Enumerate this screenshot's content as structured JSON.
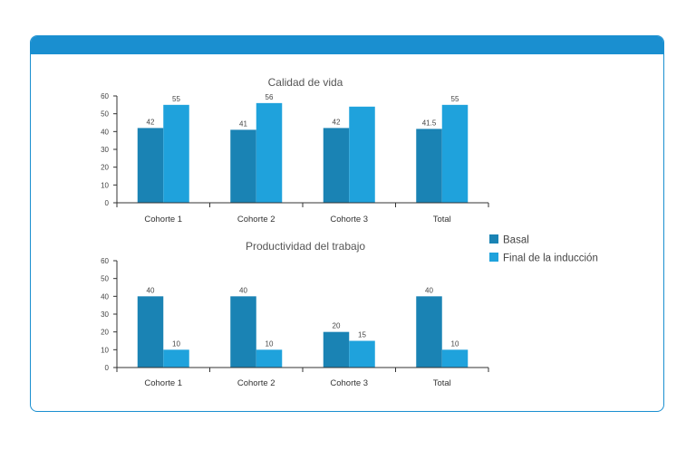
{
  "chart_data": [
    {
      "type": "bar",
      "title": "Calidad de vida",
      "categories": [
        "Cohorte 1",
        "Cohorte 2",
        "Cohorte 3",
        "Total"
      ],
      "series": [
        {
          "name": "Basal",
          "values": [
            42,
            41,
            42,
            41.5
          ],
          "labels": [
            "42",
            "41",
            "42",
            "41.5"
          ]
        },
        {
          "name": "Final de la inducción",
          "values": [
            55,
            56,
            54,
            55
          ],
          "labels": [
            "55",
            "56",
            "",
            "55"
          ]
        }
      ],
      "ylim": [
        0,
        60
      ],
      "yticks": [
        0,
        10,
        20,
        30,
        40,
        50,
        60
      ],
      "grid": false
    },
    {
      "type": "bar",
      "title": "Productividad del trabajo",
      "categories": [
        "Cohorte 1",
        "Cohorte 2",
        "Cohorte 3",
        "Total"
      ],
      "series": [
        {
          "name": "Basal",
          "values": [
            40,
            40,
            20,
            40
          ],
          "labels": [
            "40",
            "40",
            "20",
            "40"
          ]
        },
        {
          "name": "Final de la inducción",
          "values": [
            10,
            10,
            15,
            10
          ],
          "labels": [
            "10",
            "10",
            "15",
            "10"
          ]
        }
      ],
      "ylim": [
        0,
        60
      ],
      "yticks": [
        0,
        10,
        20,
        30,
        40,
        50,
        60
      ],
      "grid": false
    }
  ],
  "legend": {
    "placement": "right",
    "items": [
      {
        "name": "Basal",
        "color": "#1a83b4"
      },
      {
        "name": "Final de la inducción",
        "color": "#1fa2dc"
      }
    ]
  },
  "colors": {
    "frame": "#1a8fd0",
    "basal": "#1a83b4",
    "final": "#1fa2dc",
    "axis": "#333333"
  }
}
